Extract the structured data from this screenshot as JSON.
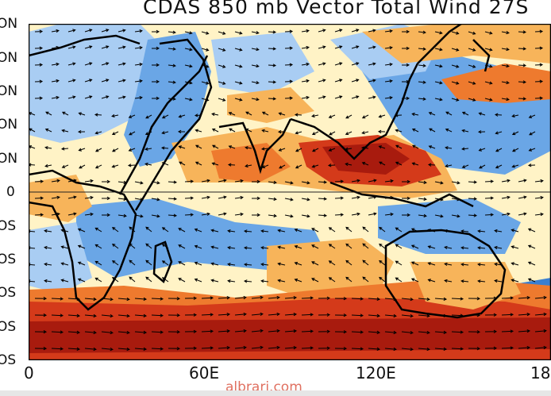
{
  "title": "CDAS 850 mb Vector Total Wind 27S",
  "latitude_labels": [
    "ON",
    "ON",
    "ON",
    "ON",
    "ON",
    "0",
    "OS",
    "OS",
    "OS",
    "OS",
    "OS"
  ],
  "longitude_labels": [
    "0",
    "60E",
    "120E",
    "18"
  ],
  "credit": "albrari.com",
  "colors": {
    "blue_dark": "#3a7fd0",
    "blue": "#6aa6e6",
    "blue_light": "#a9cdf3",
    "cream": "#fff3c6",
    "orange_light": "#f7b45a",
    "orange": "#ee7a2e",
    "red": "#d43a1a",
    "dark_red": "#a81b0e"
  }
}
